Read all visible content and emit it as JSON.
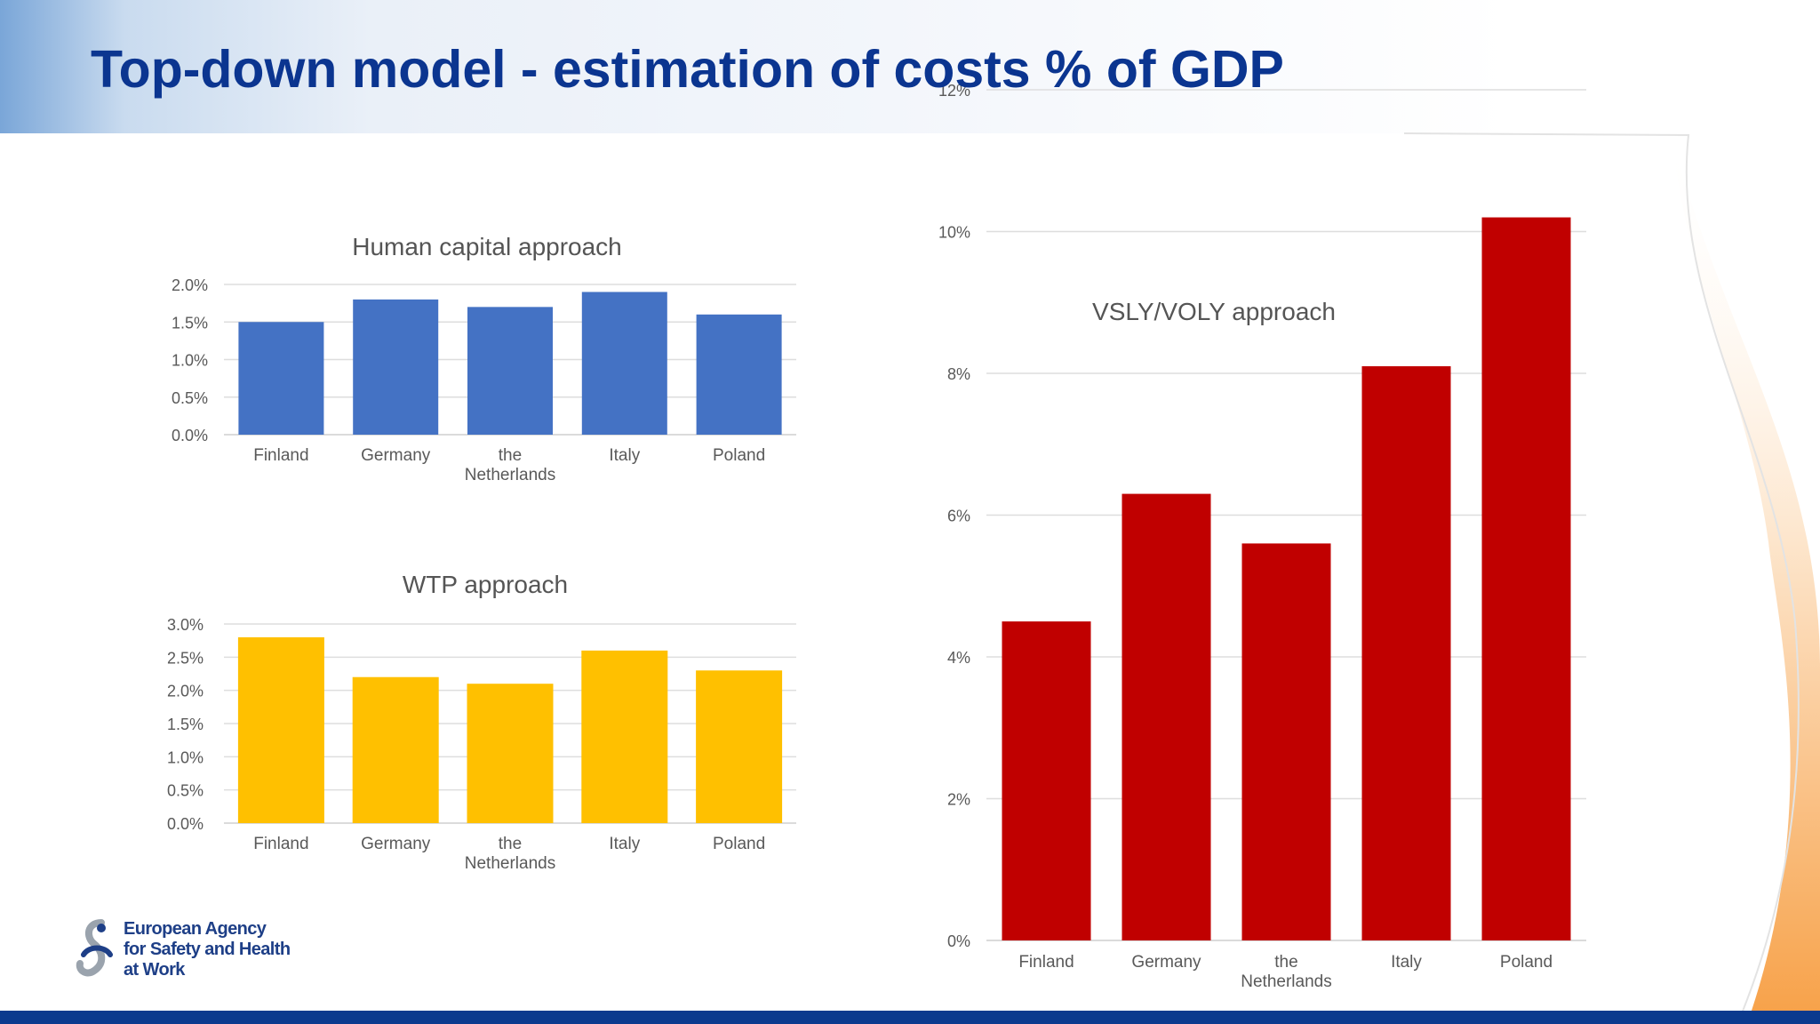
{
  "slide": {
    "title": "Top-down model - estimation of costs % of GDP"
  },
  "logo": {
    "lines": [
      "European Agency",
      "for Safety and Health",
      "at Work"
    ]
  },
  "colors": {
    "title": "#0b3590",
    "footer": "#0b3a8e",
    "human_capital_bars": "#4472c4",
    "wtp_bars": "#ffc000",
    "vsly_bars": "#c00000",
    "wave_accent": "#f7a24a"
  },
  "chart_data": [
    {
      "id": "human-capital",
      "type": "bar",
      "title": "Human capital approach",
      "categories": [
        "Finland",
        "Germany",
        "the Netherlands",
        "Italy",
        "Poland"
      ],
      "category_lines": [
        [
          "Finland"
        ],
        [
          "Germany"
        ],
        [
          "the",
          "Netherlands"
        ],
        [
          "Italy"
        ],
        [
          "Poland"
        ]
      ],
      "values": [
        1.5,
        1.8,
        1.7,
        1.9,
        1.6
      ],
      "ylim": [
        0,
        2.0
      ],
      "yticks": [
        0,
        0.5,
        1.0,
        1.5,
        2.0
      ],
      "ytick_labels": [
        "0.0%",
        "0.5%",
        "1.0%",
        "1.5%",
        "2.0%"
      ],
      "value_unit": "%",
      "xlabel": "",
      "ylabel": "",
      "grid": true,
      "legend": "none",
      "color": "#4472c4"
    },
    {
      "id": "wtp",
      "type": "bar",
      "title": "WTP approach",
      "categories": [
        "Finland",
        "Germany",
        "the Netherlands",
        "Italy",
        "Poland"
      ],
      "category_lines": [
        [
          "Finland"
        ],
        [
          "Germany"
        ],
        [
          "the",
          "Netherlands"
        ],
        [
          "Italy"
        ],
        [
          "Poland"
        ]
      ],
      "values": [
        2.8,
        2.2,
        2.1,
        2.6,
        2.3
      ],
      "ylim": [
        0,
        3.0
      ],
      "yticks": [
        0,
        0.5,
        1.0,
        1.5,
        2.0,
        2.5,
        3.0
      ],
      "ytick_labels": [
        "0.0%",
        "0.5%",
        "1.0%",
        "1.5%",
        "2.0%",
        "2.5%",
        "3.0%"
      ],
      "value_unit": "%",
      "xlabel": "",
      "ylabel": "",
      "grid": true,
      "legend": "none",
      "color": "#ffc000"
    },
    {
      "id": "vsly-voly",
      "type": "bar",
      "title": "VSLY/VOLY approach",
      "categories": [
        "Finland",
        "Germany",
        "the Netherlands",
        "Italy",
        "Poland"
      ],
      "category_lines": [
        [
          "Finland"
        ],
        [
          "Germany"
        ],
        [
          "the",
          "Netherlands"
        ],
        [
          "Italy"
        ],
        [
          "Poland"
        ]
      ],
      "values": [
        4.5,
        6.3,
        5.6,
        8.1,
        10.2
      ],
      "ylim": [
        0,
        12
      ],
      "yticks": [
        0,
        2,
        4,
        6,
        8,
        10,
        12
      ],
      "ytick_labels": [
        "0%",
        "2%",
        "4%",
        "6%",
        "8%",
        "10%",
        "12%"
      ],
      "value_unit": "%",
      "xlabel": "",
      "ylabel": "",
      "grid": true,
      "legend": "none",
      "color": "#c00000"
    }
  ]
}
